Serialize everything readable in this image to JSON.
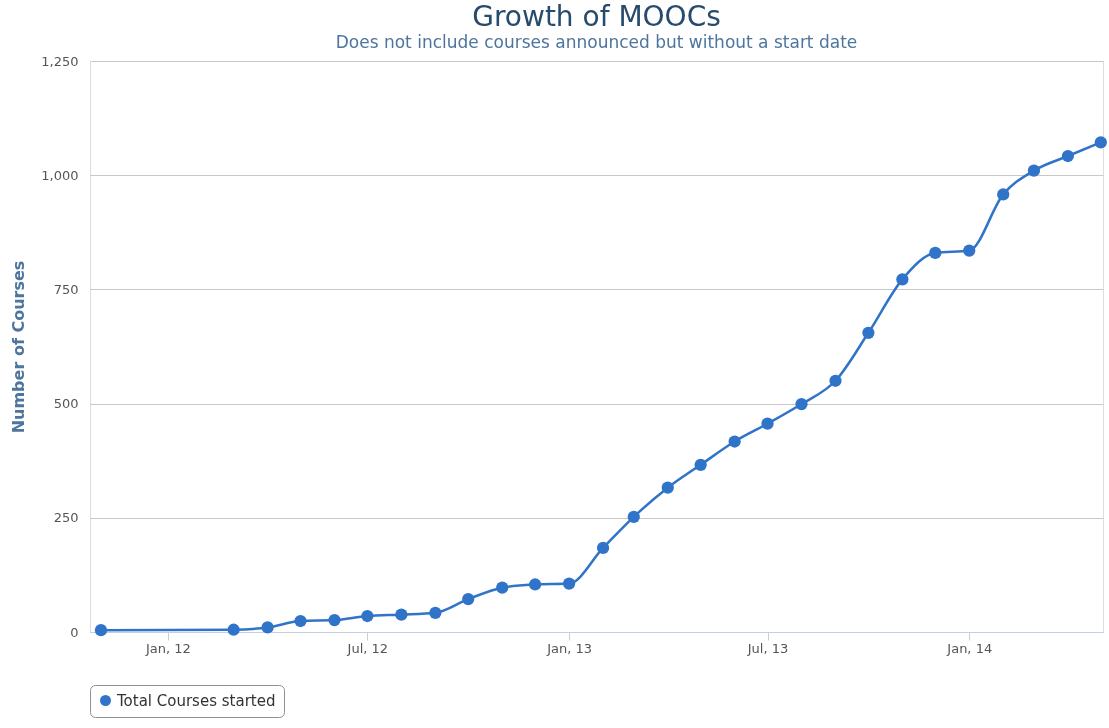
{
  "chart_data": {
    "type": "line",
    "title": "Growth of MOOCs",
    "subtitle": "Does not include courses announced but without a start date",
    "ylabel": "Number of Courses",
    "x": [
      "2011-11",
      "2012-03",
      "2012-04",
      "2012-05",
      "2012-06",
      "2012-07",
      "2012-08",
      "2012-09",
      "2012-10",
      "2012-11",
      "2012-12",
      "2013-01",
      "2013-02",
      "2013-03",
      "2013-04",
      "2013-05",
      "2013-06",
      "2013-07",
      "2013-08",
      "2013-09",
      "2013-10",
      "2013-11",
      "2013-12",
      "2014-01",
      "2014-02",
      "2014-03",
      "2014-04",
      "2014-05"
    ],
    "series": [
      {
        "name": "Total Courses started",
        "color": "#2f74c9",
        "values": [
          4,
          5,
          10,
          24,
          26,
          35,
          38,
          42,
          72,
          97,
          104,
          106,
          184,
          252,
          316,
          366,
          417,
          456,
          499,
          550,
          655,
          772,
          830,
          835,
          958,
          1010,
          1042,
          1072
        ]
      }
    ],
    "xlim": [
      "2011-10-22",
      "2014-05-03"
    ],
    "xticks": [
      {
        "value": "2012-01",
        "label": "Jan, 12"
      },
      {
        "value": "2012-07",
        "label": "Jul, 12"
      },
      {
        "value": "2013-01",
        "label": "Jan, 13"
      },
      {
        "value": "2013-07",
        "label": "Jul, 13"
      },
      {
        "value": "2014-01",
        "label": "Jan, 14"
      }
    ],
    "ylim": [
      0,
      1250
    ],
    "yticks": [
      0,
      250,
      500,
      750,
      {
        "value": 1000,
        "label": "1,000"
      },
      {
        "value": 1250,
        "label": "1,250"
      }
    ],
    "grid": "y",
    "legend": "bottom",
    "marker": "circle",
    "line_style": "solid"
  }
}
